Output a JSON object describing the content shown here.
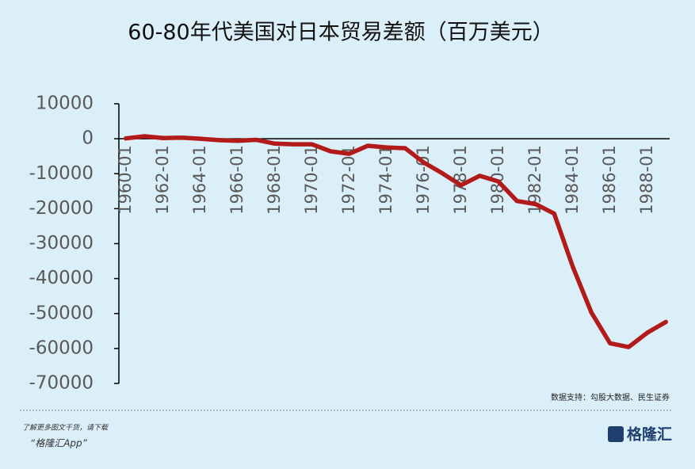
{
  "chart_data": {
    "type": "line",
    "title": "60-80年代美国对日本贸易差额（百万美元）",
    "categories": [
      "1960-01",
      null,
      "1962-01",
      null,
      "1964-01",
      null,
      "1966-01",
      null,
      "1968-01",
      null,
      "1970-01",
      null,
      "1972-01",
      null,
      "1974-01",
      null,
      "1976-01",
      null,
      "1978-01",
      null,
      "1980-01",
      null,
      "1982-01",
      null,
      "1984-01",
      null,
      "1986-01",
      null,
      "1988-01",
      null
    ],
    "series": [
      {
        "name": "美国对日本贸易差额",
        "color": "#b31b1b",
        "values": [
          100,
          700,
          200,
          300,
          0,
          -400,
          -600,
          -300,
          -1400,
          -1600,
          -1600,
          -3600,
          -4300,
          -2000,
          -2500,
          -2700,
          -6800,
          -9900,
          -13300,
          -10600,
          -12200,
          -17800,
          -18700,
          -21400,
          -36600,
          -49700,
          -58500,
          -59600,
          -55500,
          -52400
        ]
      }
    ],
    "ylim": [
      -70000,
      10000
    ],
    "yticks": [
      10000,
      0,
      -10000,
      -20000,
      -30000,
      -40000,
      -50000,
      -60000,
      -70000
    ],
    "source": "数据支持：勾股大数据、民生证券"
  },
  "footer": {
    "prompt": "了解更多图文干货，请下载",
    "app": "“格隆汇App”",
    "logo": "格隆汇"
  }
}
